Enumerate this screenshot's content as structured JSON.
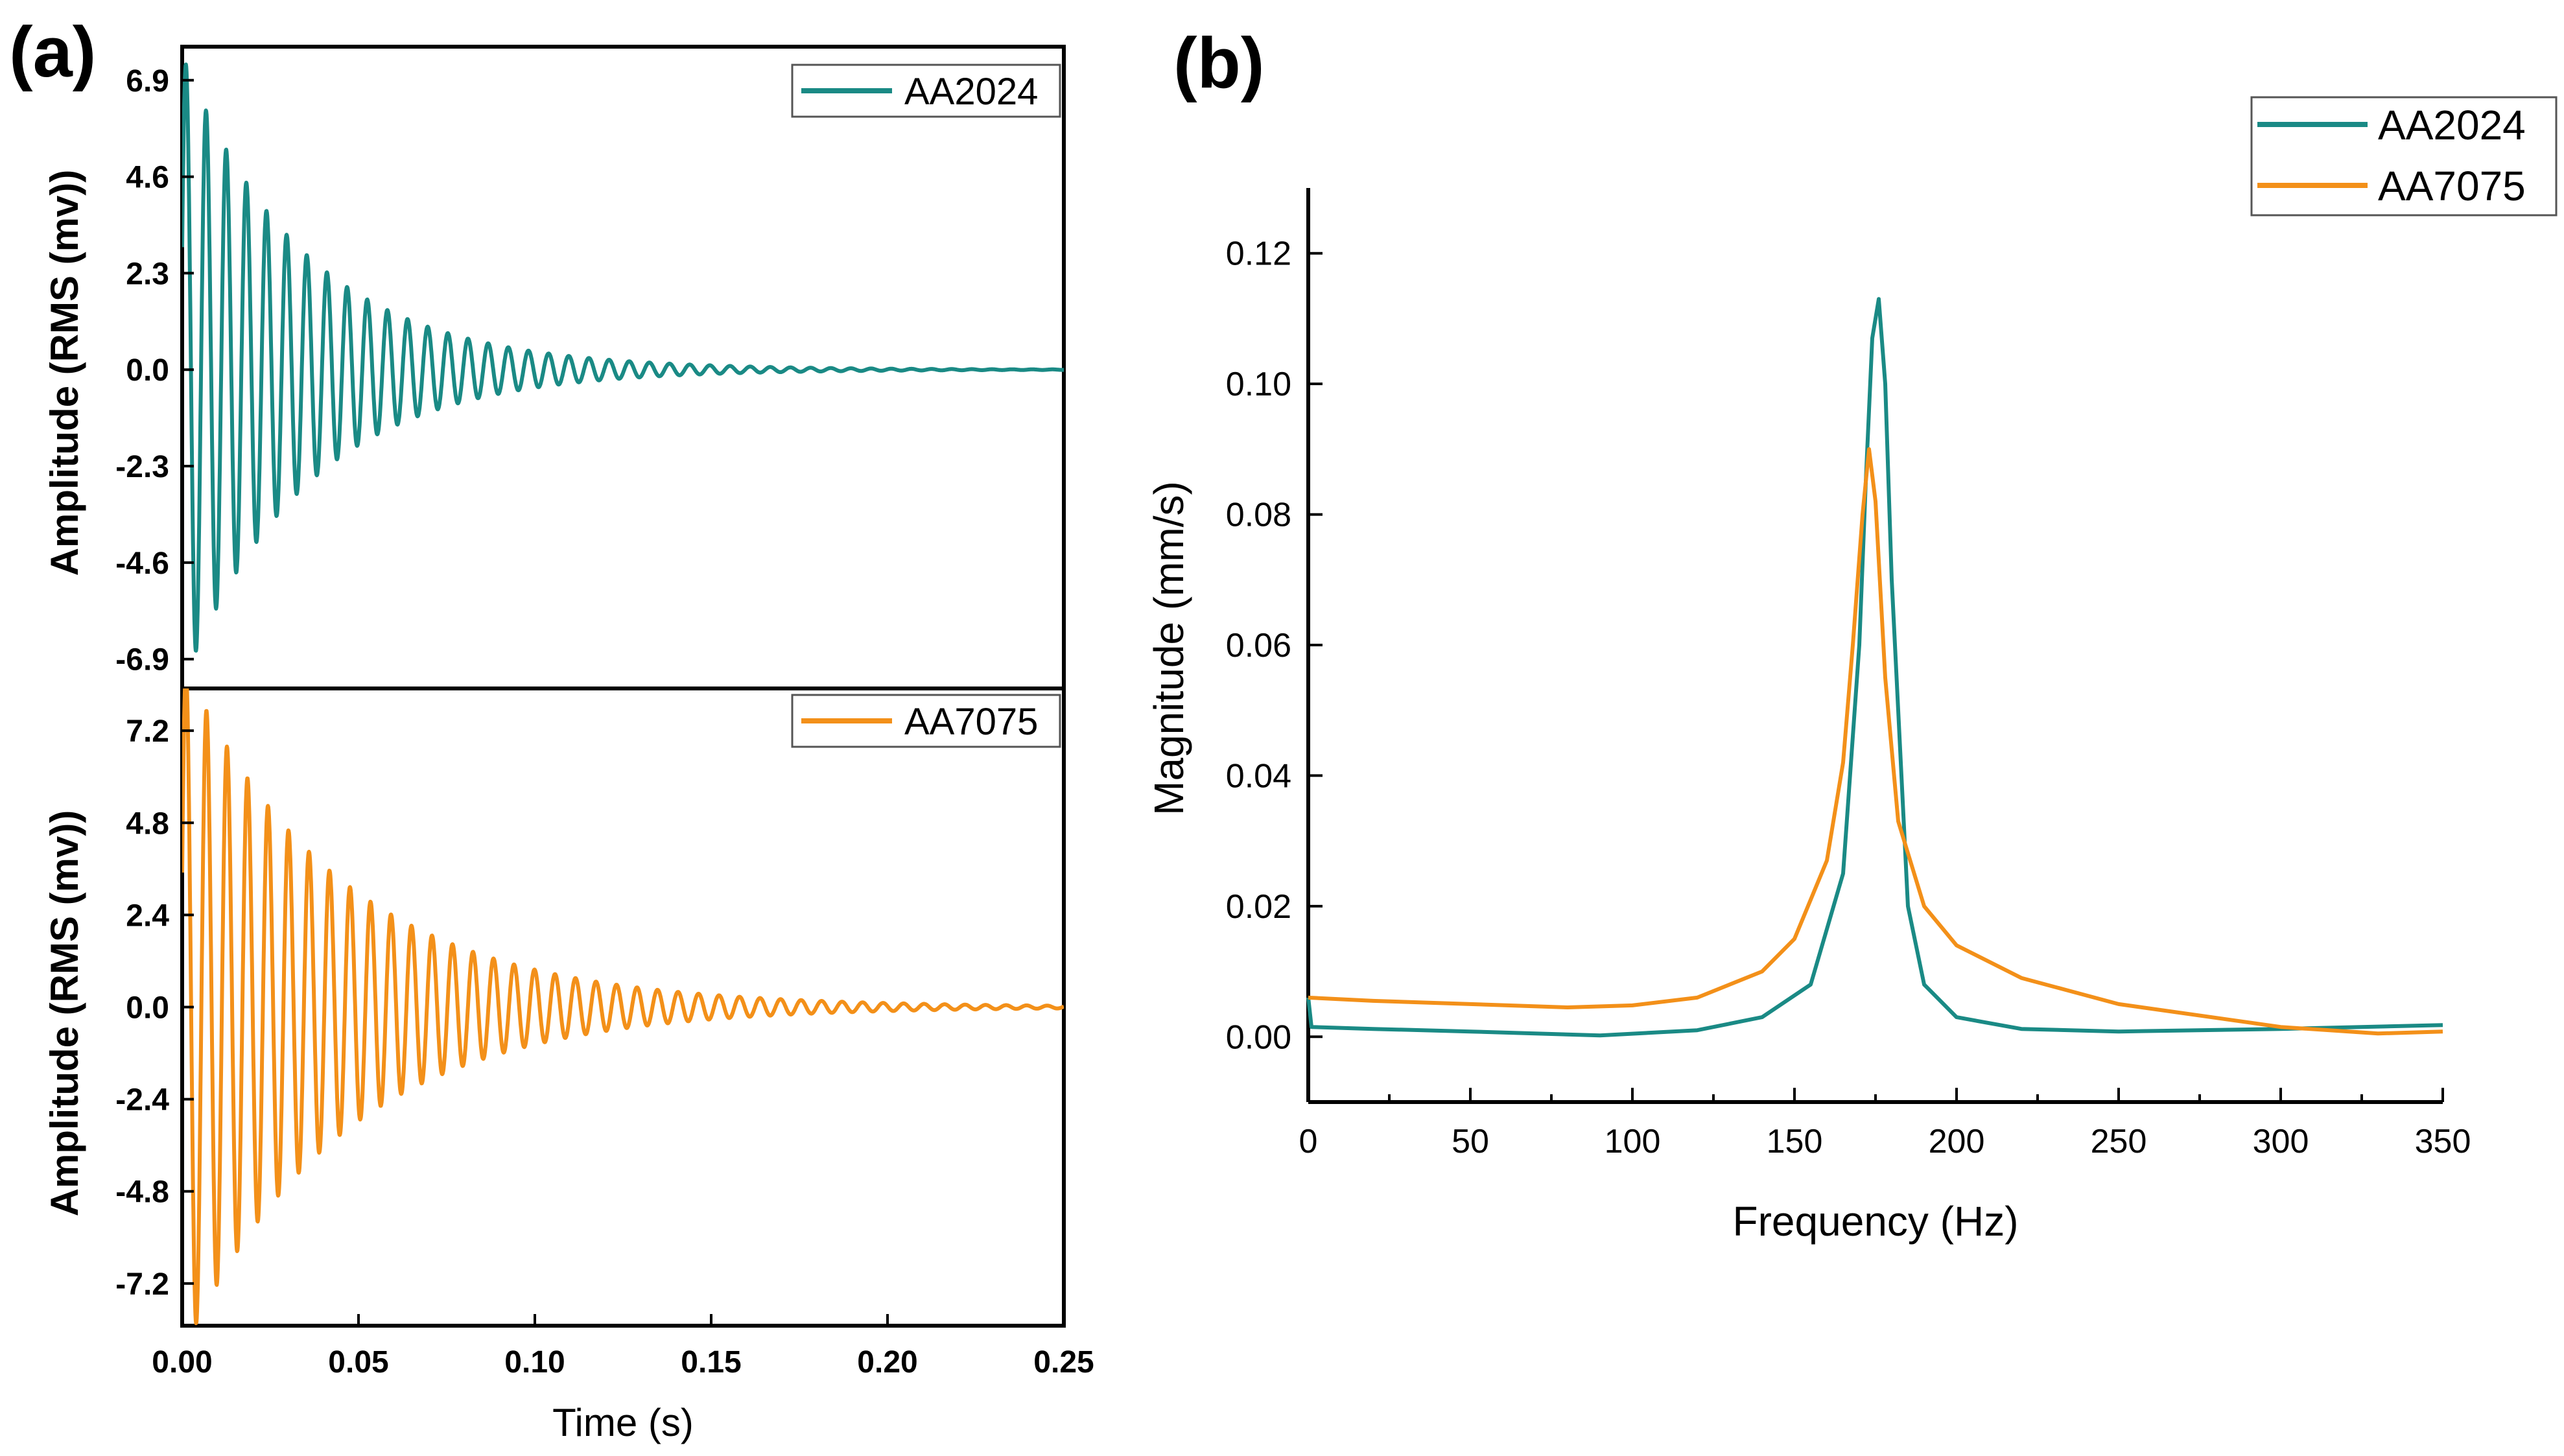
{
  "colors": {
    "AA2024": "#1a8a85",
    "AA7075": "#f39019"
  },
  "panel_labels": {
    "a": "(a)",
    "b": "(b)"
  },
  "chart_data": [
    {
      "id": "a-top",
      "type": "line",
      "signal": "damped_sine",
      "series": [
        {
          "name": "AA2024",
          "peak_amplitude": 7.5,
          "frequency_hz": 175,
          "decay_time_s": 0.035,
          "duration_s": 0.25
        }
      ],
      "ylabel": "Amplitude (RMS (mv))",
      "ylim": [
        -7.6,
        7.7
      ],
      "yticks": [
        "6.9",
        "4.6",
        "2.3",
        "0.0",
        "-2.3",
        "-4.6",
        "-6.9"
      ],
      "ytick_values": [
        6.9,
        4.6,
        2.3,
        0.0,
        -2.3,
        -4.6,
        -6.9
      ],
      "xlim": [
        0,
        0.25
      ],
      "legend": [
        "AA2024"
      ],
      "legend_position": "top-right"
    },
    {
      "id": "a-bottom",
      "type": "line",
      "signal": "damped_sine",
      "series": [
        {
          "name": "AA7075",
          "peak_amplitude": 9.0,
          "frequency_hz": 172,
          "decay_time_s": 0.045,
          "duration_s": 0.25
        }
      ],
      "xlabel": "Time (s)",
      "ylabel": "Amplitude (RMS (mv))",
      "ylim": [
        -8.3,
        8.3
      ],
      "yticks": [
        "7.2",
        "4.8",
        "2.4",
        "0.0",
        "-2.4",
        "-4.8",
        "-7.2"
      ],
      "ytick_values": [
        7.2,
        4.8,
        2.4,
        0.0,
        -2.4,
        -4.8,
        -7.2
      ],
      "xlim": [
        0,
        0.25
      ],
      "xticks": [
        "0.00",
        "0.05",
        "0.10",
        "0.15",
        "0.20",
        "0.25"
      ],
      "xtick_values": [
        0,
        0.05,
        0.1,
        0.15,
        0.2,
        0.25
      ],
      "legend": [
        "AA7075"
      ],
      "legend_position": "top-right"
    },
    {
      "id": "b",
      "type": "line",
      "title": "",
      "xlabel": "Frequency (Hz)",
      "ylabel": "Magnitude (mm/s)",
      "xlim": [
        0,
        350
      ],
      "ylim": [
        -0.01,
        0.13
      ],
      "xticks": [
        "0",
        "50",
        "100",
        "150",
        "200",
        "250",
        "300",
        "350"
      ],
      "xtick_values": [
        0,
        50,
        100,
        150,
        200,
        250,
        300,
        350
      ],
      "yticks": [
        "0.00",
        "0.02",
        "0.04",
        "0.06",
        "0.08",
        "0.10",
        "0.12"
      ],
      "ytick_values": [
        0,
        0.02,
        0.04,
        0.06,
        0.08,
        0.1,
        0.12
      ],
      "legend": [
        "AA2024",
        "AA7075"
      ],
      "legend_position": "top-right",
      "series": [
        {
          "name": "AA2024",
          "x": [
            0,
            1,
            20,
            50,
            90,
            120,
            140,
            155,
            165,
            170,
            172,
            174,
            176,
            178,
            180,
            185,
            190,
            200,
            220,
            250,
            300,
            350
          ],
          "y": [
            0.006,
            0.0015,
            0.0012,
            0.0008,
            0.0002,
            0.001,
            0.003,
            0.008,
            0.025,
            0.06,
            0.085,
            0.107,
            0.113,
            0.1,
            0.07,
            0.02,
            0.008,
            0.003,
            0.0012,
            0.0008,
            0.0012,
            0.0018
          ]
        },
        {
          "name": "AA7075",
          "x": [
            0,
            20,
            50,
            80,
            100,
            120,
            140,
            150,
            160,
            165,
            168,
            171,
            173,
            175,
            178,
            182,
            190,
            200,
            220,
            250,
            300,
            330,
            350
          ],
          "y": [
            0.006,
            0.0055,
            0.005,
            0.0045,
            0.0048,
            0.006,
            0.01,
            0.015,
            0.027,
            0.042,
            0.06,
            0.08,
            0.09,
            0.082,
            0.055,
            0.033,
            0.02,
            0.014,
            0.009,
            0.005,
            0.0015,
            0.0005,
            0.0008
          ]
        }
      ]
    }
  ]
}
